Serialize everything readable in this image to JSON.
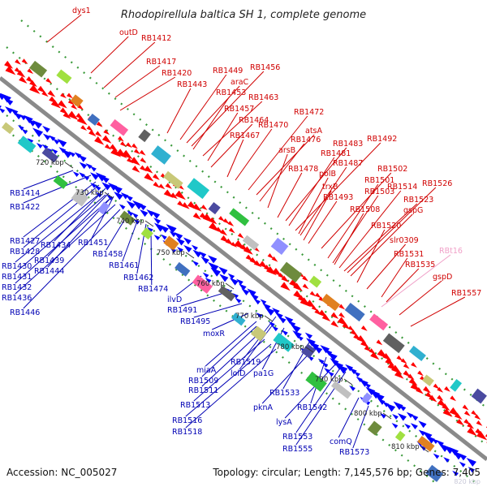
{
  "title": "Rhodopirellula baltica SH 1, complete genome",
  "accession": "Accession: NC_005027",
  "topology": "Topology: circular; Length: 7,145,576 bp; Genes: 7,405",
  "corner_label": "820 kbp",
  "colors": {
    "backbone": "#8a8a8a",
    "forward_label": "#d00000",
    "reverse_label": "#0000b4",
    "rna_label": "#f0a0c8",
    "dot_guide": "#3a9a3a"
  },
  "ticks": [
    "720 kbp",
    "730 kbp",
    "740 kbp",
    "750 kbp",
    "760 kbp",
    "770 kbp",
    "780 kbp",
    "790 kbp",
    "800 kbp",
    "810 kbp"
  ],
  "forward_labels": [
    "dys1",
    "outD",
    "RB1412",
    "RB1417",
    "RB1420",
    "RB1443",
    "RB1449",
    "araC",
    "RB1456",
    "RB1453",
    "RB1463",
    "RB1457",
    "RB1464",
    "RB1467",
    "RB1470",
    "RB1472",
    "atsA",
    "RB1476",
    "arsB",
    "RB1483",
    "RB1492",
    "RB1481",
    "RB1478",
    "RB1487",
    "polB",
    "RB1502",
    "trxB",
    "RB1501",
    "RB1503",
    "RB1493",
    "RB1514",
    "RB1526",
    "RB1523",
    "RB1508",
    "gspG",
    "RB1520",
    "slr0309",
    "RB1531",
    "RB1535",
    "gspD",
    "RB1557"
  ],
  "rna_labels": [
    "RBt16"
  ],
  "reverse_labels": [
    "RB1414",
    "RB1422",
    "RB1427",
    "RB1428",
    "RB1434",
    "RB1451",
    "RB1430",
    "RB1439",
    "RB1431",
    "RB1444",
    "RB1432",
    "RB1436",
    "RB1446",
    "RB1458",
    "RB1461",
    "RB1462",
    "RB1474",
    "ilvD",
    "RB1491",
    "RB1495",
    "moxR",
    "RB1519",
    "miaA",
    "RB1509",
    "lolD",
    "pa1G",
    "RB1511",
    "RB1513",
    "RB1533",
    "pknA",
    "RB1542",
    "RB1516",
    "lysA",
    "RB1518",
    "RB1553",
    "comQ",
    "RB1555",
    "RB1573"
  ]
}
